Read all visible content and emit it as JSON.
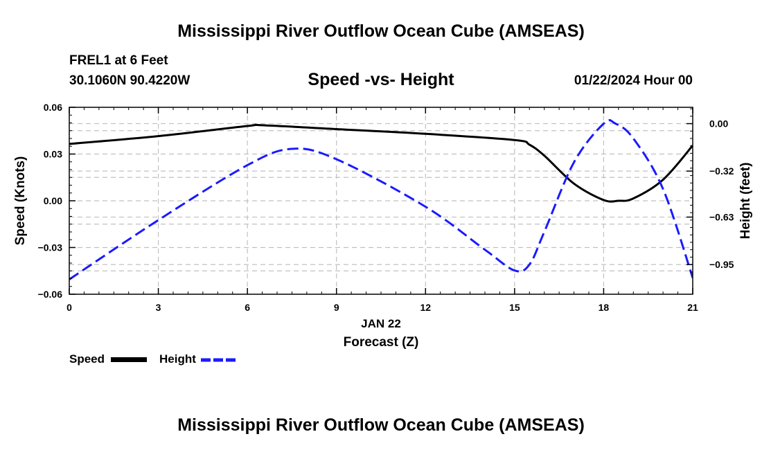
{
  "header": {
    "title": "Mississippi River Outflow Ocean Cube (AMSEAS)",
    "station": "FREL1 at 6 Feet",
    "coords": "30.1060N  90.4220W",
    "datetime": "01/22/2024 Hour 00",
    "footer_title": "Mississippi River Outflow Ocean Cube (AMSEAS)"
  },
  "legend": {
    "speed_label": "Speed",
    "height_label": "Height"
  },
  "colors": {
    "speed": "#000000",
    "height": "#1a1aff",
    "grid": "#c0c0c0"
  },
  "chart_data": {
    "type": "line",
    "title": "Speed -vs- Height",
    "xlabel": "Forecast (Z)",
    "xsublabel": "JAN 22",
    "ylabel": "Speed (Knots)",
    "y2label": "Height (feet)",
    "xlim": [
      0,
      21
    ],
    "ylim": [
      -0.06,
      0.06
    ],
    "y2lim": [
      -1.15,
      0.11
    ],
    "x_ticks": [
      "0",
      "3",
      "6",
      "9",
      "12",
      "15",
      "18",
      "21"
    ],
    "y_ticks": [
      "0.06",
      "0.03",
      "0.00",
      "−0.03",
      "−0.06"
    ],
    "y2_ticks": [
      "0.00",
      "−0.32",
      "−0.63",
      "−0.95"
    ],
    "y_tick_values": [
      0.06,
      0.03,
      0.0,
      -0.03,
      -0.06
    ],
    "y2_tick_values": [
      0.0,
      -0.32,
      -0.63,
      -0.95
    ],
    "series": [
      {
        "name": "Speed",
        "axis": "left",
        "style": "solid",
        "x": [
          0,
          3,
          6,
          6.5,
          9,
          12,
          15,
          15.5,
          16,
          17,
          18,
          18.5,
          19,
          20,
          21
        ],
        "values": [
          0.0365,
          0.0415,
          0.048,
          0.0485,
          0.046,
          0.043,
          0.039,
          0.036,
          0.029,
          0.011,
          0.0005,
          0.0,
          0.0015,
          0.0135,
          0.0355
        ]
      },
      {
        "name": "Height",
        "axis": "right",
        "style": "dashed",
        "x": [
          0,
          3,
          6,
          7.5,
          9,
          12,
          14,
          15,
          15.5,
          16,
          17,
          18,
          18.4,
          19,
          20,
          21
        ],
        "values": [
          -1.05,
          -0.65,
          -0.28,
          -0.17,
          -0.24,
          -0.56,
          -0.85,
          -0.99,
          -0.95,
          -0.73,
          -0.26,
          0.0,
          -0.0,
          -0.1,
          -0.44,
          -1.04
        ]
      }
    ]
  }
}
